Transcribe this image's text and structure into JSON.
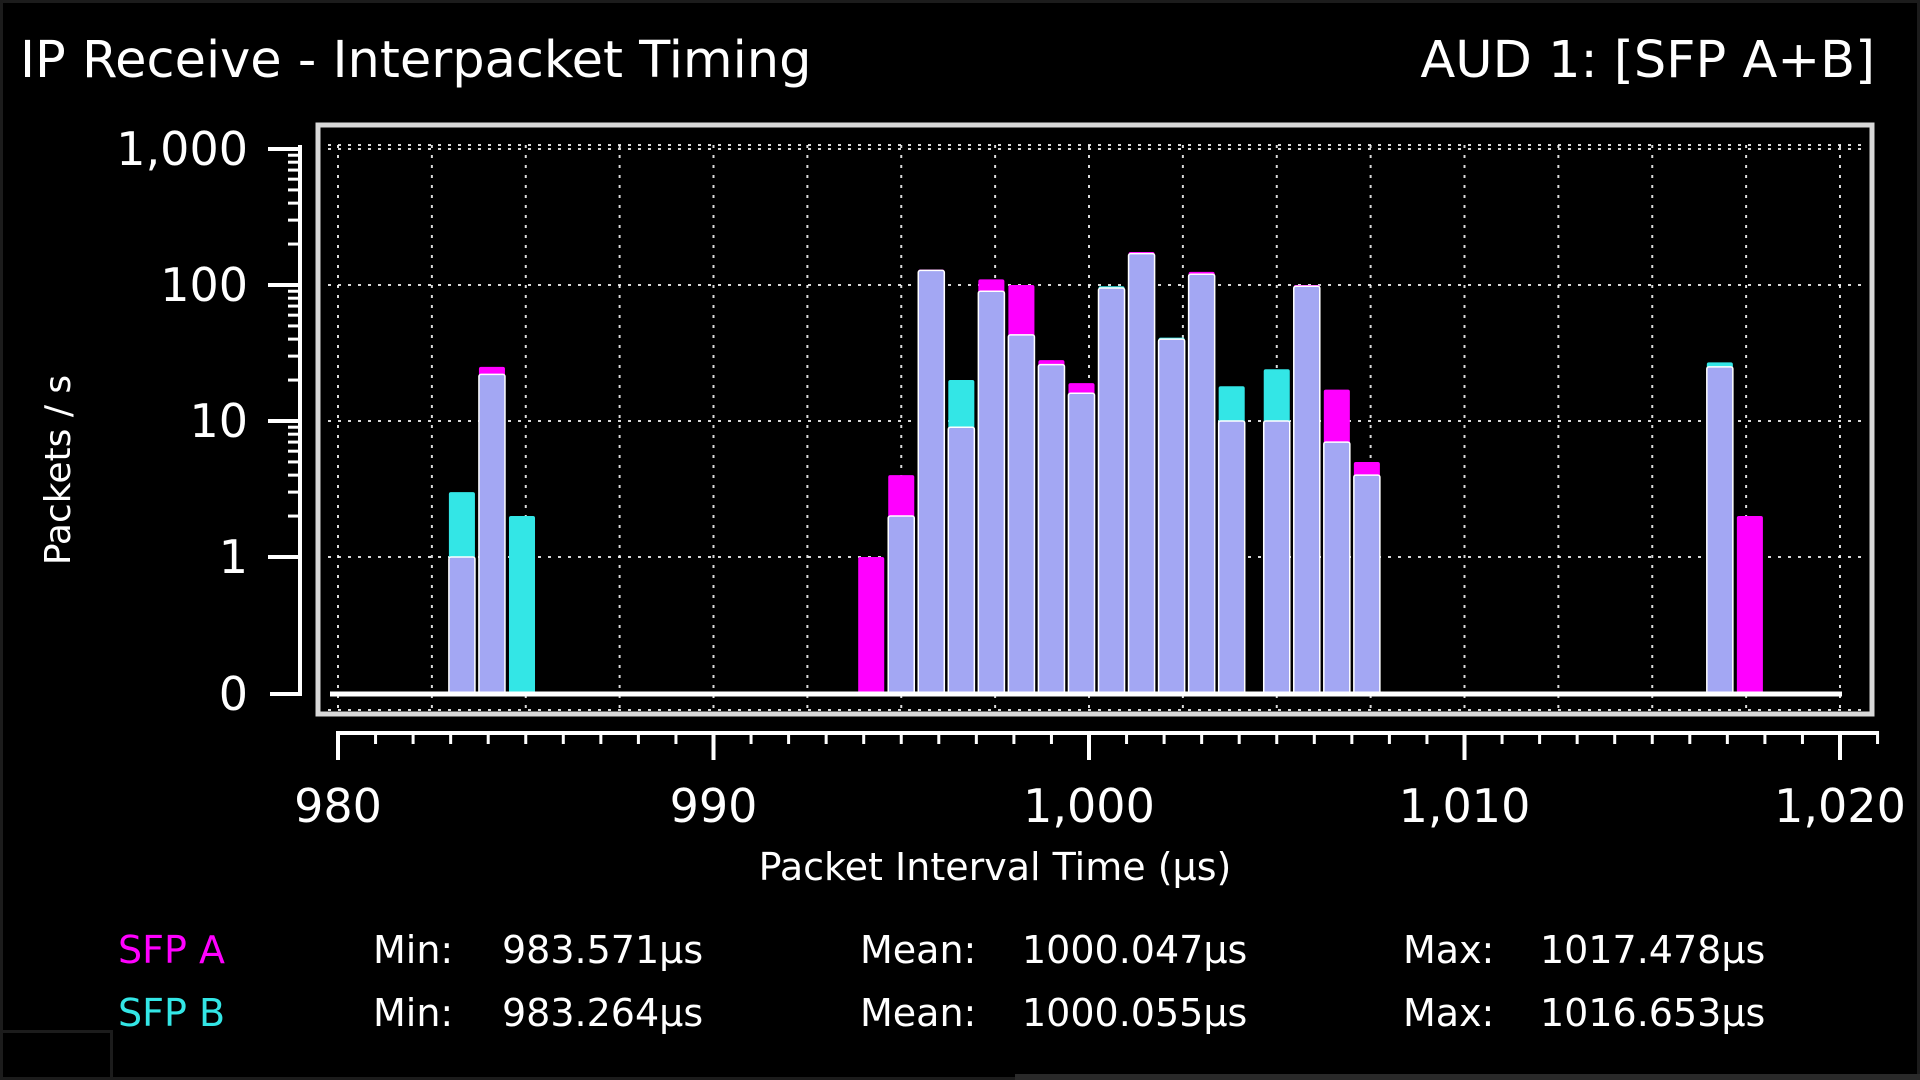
{
  "header": {
    "title": "IP Receive - Interpacket Timing",
    "source": "AUD 1: [SFP A+B]"
  },
  "colors": {
    "sfp_a": "#ff00ff",
    "sfp_b": "#33e6e6",
    "overlap": "#a3a7f3",
    "background": "#000000",
    "grid": "#ffffff"
  },
  "stats": {
    "min_label": "Min:",
    "mean_label": "Mean:",
    "max_label": "Max:",
    "rows": [
      {
        "name": "SFP A",
        "min": "983.571μs",
        "mean": "1000.047μs",
        "max": "1017.478μs"
      },
      {
        "name": "SFP B",
        "min": "983.264μs",
        "mean": "1000.055μs",
        "max": "1016.653μs"
      }
    ]
  },
  "chart_data": {
    "type": "bar",
    "subtype": "histogram",
    "xlabel": "Packet Interval Time (μs)",
    "ylabel": "Packets / s",
    "xlim": [
      980,
      1021
    ],
    "x_ticks": [
      980,
      990,
      1000,
      1010,
      1020
    ],
    "x_tick_labels": [
      "980",
      "990",
      "1,000",
      "1,010",
      "1,020"
    ],
    "y_scale": "log",
    "y_ticks": [
      0,
      1,
      10,
      100,
      1000
    ],
    "y_tick_labels": [
      "0",
      "1",
      "10",
      "100",
      "1,000"
    ],
    "grid": true,
    "bin_width": 0.8,
    "x": [
      983.3,
      984.1,
      984.9,
      994.2,
      995.0,
      995.8,
      996.6,
      997.4,
      998.2,
      999.0,
      999.8,
      1000.6,
      1001.4,
      1002.2,
      1003.0,
      1003.8,
      1005.0,
      1005.8,
      1006.6,
      1007.4,
      1016.8,
      1017.6
    ],
    "series": [
      {
        "name": "SFP A",
        "values": [
          1,
          25,
          0,
          1,
          4,
          130,
          9,
          110,
          100,
          28,
          19,
          95,
          175,
          40,
          125,
          10,
          10,
          100,
          17,
          5,
          25,
          2
        ]
      },
      {
        "name": "SFP B",
        "values": [
          3,
          22,
          2,
          0,
          2,
          128,
          20,
          90,
          43,
          26,
          16,
          98,
          170,
          41,
          120,
          18,
          24,
          98,
          7,
          4,
          27,
          0
        ]
      }
    ]
  }
}
